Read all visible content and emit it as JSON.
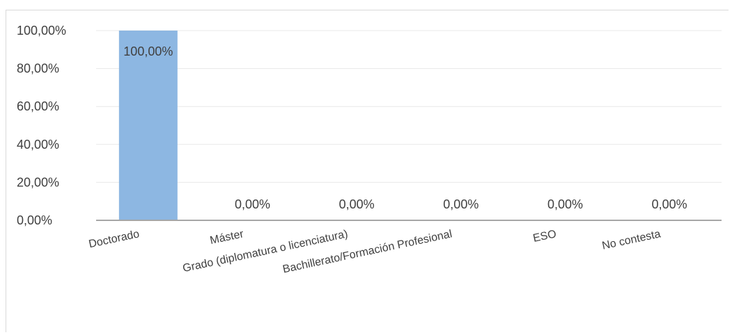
{
  "chart_data": {
    "type": "bar",
    "categories": [
      "Doctorado",
      "Máster",
      "Grado (diplomatura o licenciatura)",
      "Bachillerato/Formación Profesional",
      "ESO",
      "No contesta"
    ],
    "values": [
      100,
      0,
      0,
      0,
      0,
      0
    ],
    "data_labels": [
      "100,00%",
      "0,00%",
      "0,00%",
      "0,00%",
      "0,00%",
      "0,00%"
    ],
    "y_ticks": [
      "0,00%",
      "20,00%",
      "40,00%",
      "60,00%",
      "80,00%",
      "100,00%"
    ],
    "ylim": [
      0,
      100
    ],
    "grid": true,
    "colors": {
      "bar": "#8db7e2",
      "grid": "#e8e8e8",
      "axis": "#a6a6a6",
      "text": "#404040"
    }
  }
}
